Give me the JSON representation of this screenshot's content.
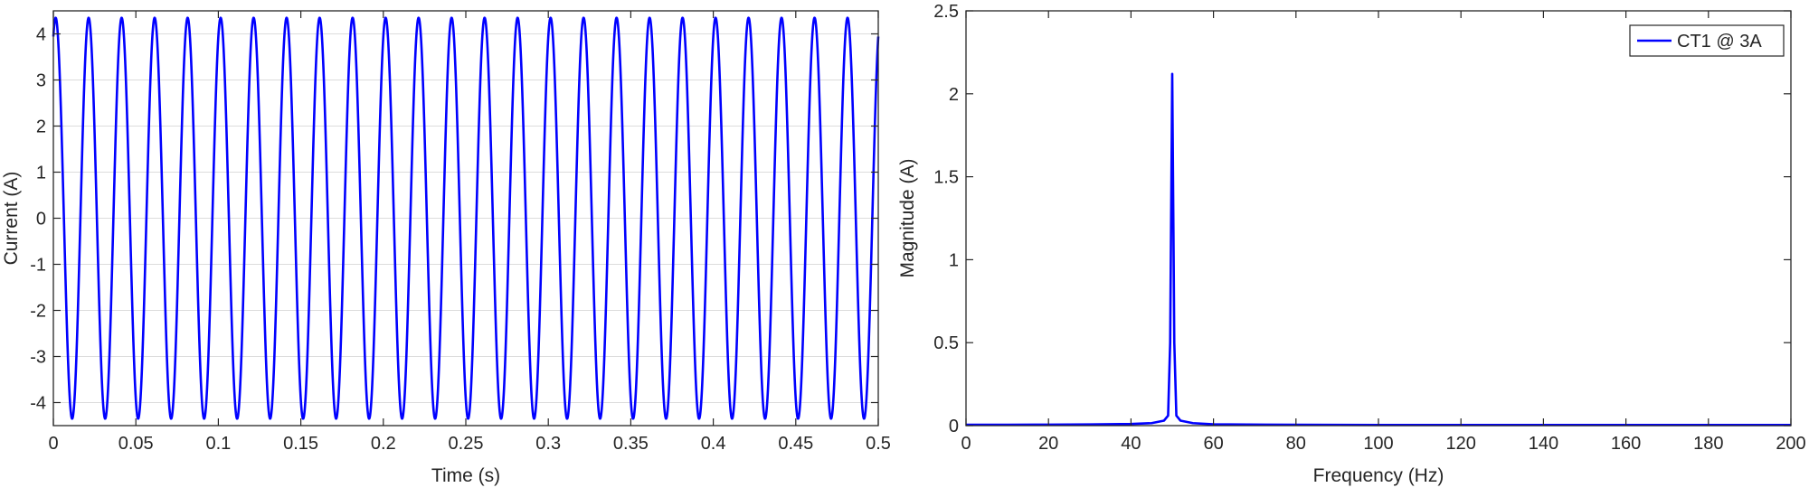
{
  "chart_data": [
    {
      "type": "line",
      "title": "",
      "xlabel": "Time (s)",
      "ylabel": "Current (A)",
      "xlim": [
        0,
        0.5
      ],
      "ylim": [
        -4.5,
        4.5
      ],
      "xticks": [
        0,
        0.05,
        0.1,
        0.15,
        0.2,
        0.25,
        0.3,
        0.35,
        0.4,
        0.45,
        0.5
      ],
      "xtick_labels": [
        "0",
        "0.05",
        "0.1",
        "0.15",
        "0.2",
        "0.25",
        "0.3",
        "0.35",
        "0.4",
        "0.45",
        "0.5"
      ],
      "yticks": [
        -4,
        -3,
        -2,
        -1,
        0,
        1,
        2,
        3,
        4
      ],
      "ytick_labels": [
        "-4",
        "-3",
        "-2",
        "-1",
        "0",
        "1",
        "2",
        "3",
        "4"
      ],
      "grid": true,
      "series": [
        {
          "frequency_hz": 50,
          "amplitude": 4.35,
          "phase_deg": 65,
          "x_start": 0,
          "x_end": 0.5,
          "color": "#0000ff"
        }
      ]
    },
    {
      "type": "line",
      "title": "",
      "xlabel": "Frequency (Hz)",
      "ylabel": "Magnitude (A)",
      "xlim": [
        0,
        200
      ],
      "ylim": [
        0,
        2.5
      ],
      "xticks": [
        0,
        20,
        40,
        60,
        80,
        100,
        120,
        140,
        160,
        180,
        200
      ],
      "xtick_labels": [
        "0",
        "20",
        "40",
        "60",
        "80",
        "100",
        "120",
        "140",
        "160",
        "180",
        "200"
      ],
      "yticks": [
        0,
        0.5,
        1,
        1.5,
        2,
        2.5
      ],
      "ytick_labels": [
        "0",
        "0.5",
        "1",
        "1.5",
        "2",
        "2.5"
      ],
      "grid": false,
      "legend": {
        "position": "top-right",
        "entries": [
          "CT1 @ 3A"
        ]
      },
      "series": [
        {
          "name": "CT1 @ 3A",
          "color": "#0000ff",
          "x": [
            0,
            10,
            20,
            30,
            40,
            45,
            48,
            49,
            49.5,
            50,
            50.5,
            51,
            52,
            55,
            60,
            80,
            100,
            120,
            140,
            160,
            180,
            200
          ],
          "y": [
            0.005,
            0.005,
            0.006,
            0.007,
            0.01,
            0.015,
            0.03,
            0.06,
            0.5,
            2.12,
            0.5,
            0.06,
            0.03,
            0.015,
            0.008,
            0.005,
            0.004,
            0.004,
            0.004,
            0.004,
            0.004,
            0.004
          ]
        }
      ]
    }
  ]
}
